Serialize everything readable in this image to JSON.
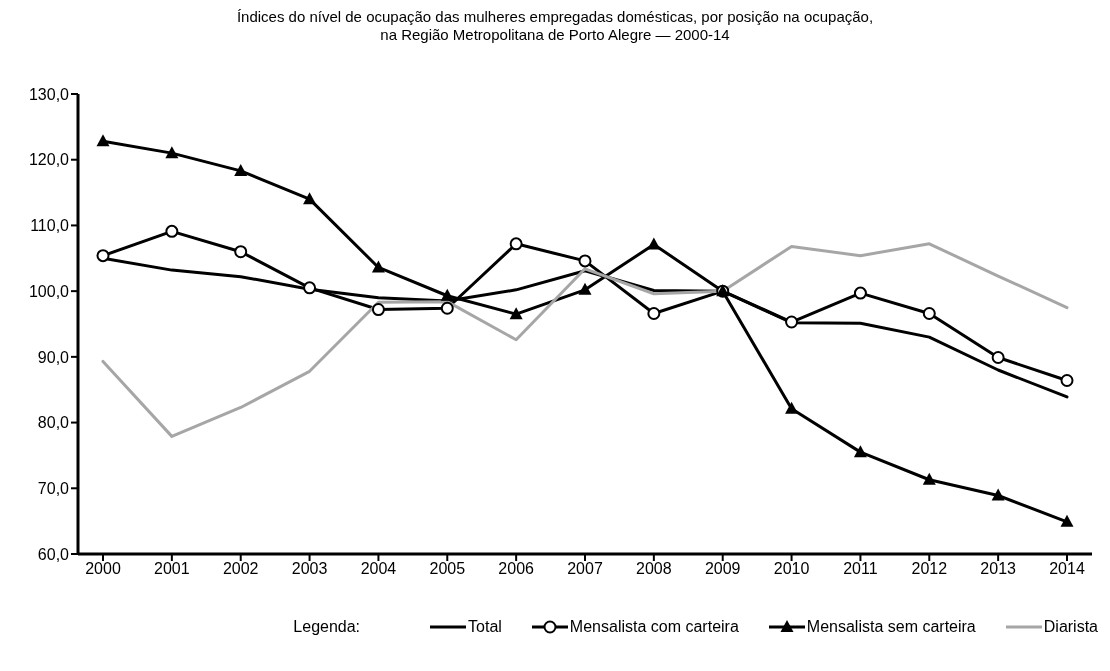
{
  "chart_data": {
    "type": "line",
    "title": "Índices do nível de ocupação das mulheres empregadas domésticas, por posição na ocupação,\nna Região Metropolitana de Porto Alegre — 2000-14",
    "categories": [
      "2000",
      "2001",
      "2002",
      "2003",
      "2004",
      "2005",
      "2006",
      "2007",
      "2008",
      "2009",
      "2010",
      "2011",
      "2012",
      "2013",
      "2014"
    ],
    "series": [
      {
        "name": "Total",
        "color": "#000000",
        "marker": "none",
        "values": [
          105.0,
          103.2,
          102.2,
          100.3,
          99.0,
          98.5,
          100.2,
          103.1,
          100.1,
          100.0,
          95.2,
          95.1,
          93.0,
          88.0,
          83.9
        ]
      },
      {
        "name": "Mensalista com carteira",
        "color": "#000000",
        "marker": "circle",
        "values": [
          105.4,
          109.1,
          106.0,
          100.5,
          97.2,
          97.4,
          107.2,
          104.6,
          96.6,
          100.0,
          95.3,
          99.7,
          96.6,
          89.9,
          86.4
        ]
      },
      {
        "name": "Mensalista sem carteira",
        "color": "#000000",
        "marker": "triangle",
        "values": [
          122.8,
          121.0,
          118.3,
          114.0,
          103.6,
          99.3,
          96.5,
          100.2,
          107.1,
          100.0,
          82.1,
          75.5,
          71.3,
          68.9,
          64.9
        ]
      },
      {
        "name": "Diarista",
        "color": "#a6a6a6",
        "marker": "none",
        "values": [
          89.3,
          77.9,
          82.3,
          87.8,
          98.3,
          98.4,
          92.6,
          103.4,
          99.6,
          100.0,
          106.8,
          105.4,
          107.2,
          102.3,
          97.5
        ]
      }
    ],
    "ylim": [
      60,
      130
    ],
    "yticks": [
      {
        "value": 60,
        "label": "60,0"
      },
      {
        "value": 70,
        "label": "70,0"
      },
      {
        "value": 80,
        "label": "80,0"
      },
      {
        "value": 90,
        "label": "90,0"
      },
      {
        "value": 100,
        "label": "100,0"
      },
      {
        "value": 110,
        "label": "110,0"
      },
      {
        "value": 120,
        "label": "120,0"
      },
      {
        "value": 130,
        "label": "130,0"
      }
    ],
    "grid": false,
    "legend": "bottom",
    "legend_title": "Legenda:",
    "line_style": "solid"
  }
}
